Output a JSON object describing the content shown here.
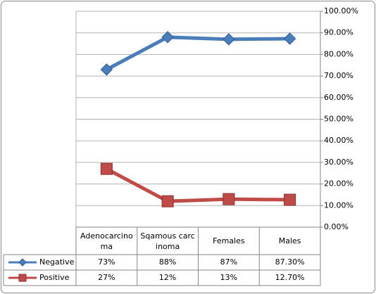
{
  "chart_data": {
    "type": "line",
    "categories": [
      "Adenocarcinoma",
      "Sqamous carcinoma",
      "Females",
      "Males"
    ],
    "series": [
      {
        "name": "Negative",
        "color": "#4a7ebb",
        "marker": "diamond",
        "values": [
          73,
          88,
          87,
          87.3
        ],
        "value_labels": [
          "73%",
          "88%",
          "87%",
          "87.30%"
        ]
      },
      {
        "name": "Positive",
        "color": "#be4b48",
        "marker": "square",
        "values": [
          27,
          12,
          13,
          12.7
        ],
        "value_labels": [
          "27%",
          "12%",
          "13%",
          "12.70%"
        ]
      }
    ],
    "ylim": [
      0,
      100
    ],
    "yticks": [
      {
        "value": 0,
        "label": "0.00%"
      },
      {
        "value": 10,
        "label": "10.00%"
      },
      {
        "value": 20,
        "label": "20.00%"
      },
      {
        "value": 30,
        "label": "30.00%"
      },
      {
        "value": 40,
        "label": "40.00%"
      },
      {
        "value": 50,
        "label": "50.00%"
      },
      {
        "value": 60,
        "label": "60.00%"
      },
      {
        "value": 70,
        "label": "70.00%"
      },
      {
        "value": 80,
        "label": "80.00%"
      },
      {
        "value": 90,
        "label": "90.00%"
      },
      {
        "value": 100,
        "label": "100.00%"
      }
    ],
    "grid": true,
    "y_axis_side": "right"
  }
}
